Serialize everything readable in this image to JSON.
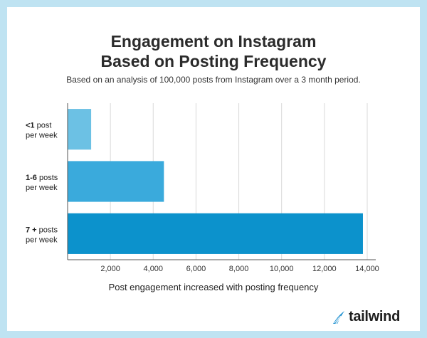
{
  "header": {
    "title_line1": "Engagement on Instagram",
    "title_line2": "Based on Posting Frequency",
    "subtitle": "Based on an analysis of 100,000 posts from Instagram over a 3 month period."
  },
  "chart_data": {
    "type": "bar",
    "orientation": "horizontal",
    "title": "Engagement on Instagram Based on Posting Frequency",
    "subtitle": "Based on an analysis of 100,000 posts from Instagram over a 3 month period.",
    "xlabel": "Post engagement increased with posting frequency",
    "ylabel": "",
    "categories": [
      {
        "bold": "<1",
        "rest": " post",
        "line2": "per week"
      },
      {
        "bold": "1-6",
        "rest": " posts",
        "line2": "per week"
      },
      {
        "bold": "7 +",
        "rest": " posts",
        "line2": "per week"
      }
    ],
    "values": [
      1100,
      4500,
      13800
    ],
    "bar_colors": [
      "#6cc1e4",
      "#3aaadc",
      "#0c92cc"
    ],
    "xlim": [
      0,
      14200
    ],
    "xticks": [
      2000,
      4000,
      6000,
      8000,
      10000,
      12000,
      14000
    ],
    "xtick_labels": [
      "2,000",
      "4,000",
      "6,000",
      "8,000",
      "10,000",
      "12,000",
      "14,000"
    ],
    "grid": true,
    "legend": "none"
  },
  "brand": {
    "name": "tailwind",
    "color": "#1b8fd0"
  },
  "colors": {
    "frame": "#bfe3f2",
    "grid": "#d9d9d9",
    "axis": "#555555"
  }
}
